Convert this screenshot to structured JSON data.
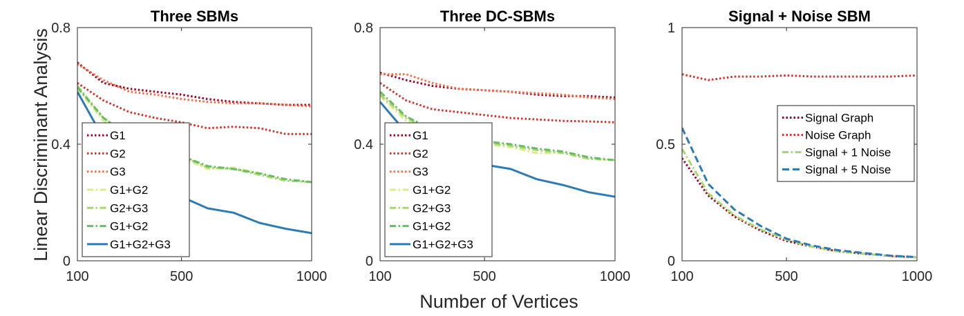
{
  "figure": {
    "ylabel": "Linear Discriminant Analysis",
    "xlabel": "Number of Vertices"
  },
  "colors": {
    "G1": "#a50026",
    "G2": "#d73027",
    "G3": "#f46d43",
    "G1+G2_light": "#d9ef8b",
    "G2+G3": "#a6d96a",
    "G1+G2_dark": "#66bd63",
    "G1+G2+G3": "#2c7bb6",
    "axis": "#262626"
  },
  "chart_data": [
    {
      "type": "line",
      "title": "Three SBMs",
      "xlabel": "Number of Vertices",
      "ylabel": "Linear Discriminant Analysis",
      "xlim": [
        100,
        1000
      ],
      "ylim": [
        0,
        0.8
      ],
      "xticks": [
        100,
        500,
        1000
      ],
      "yticks": [
        0,
        0.4,
        0.8
      ],
      "ytick_labels": [
        "0",
        "0.4",
        "0.8"
      ],
      "legend_position": "lower-left",
      "x": [
        100,
        200,
        300,
        400,
        500,
        600,
        700,
        800,
        900,
        1000
      ],
      "series": [
        {
          "name": "G1",
          "style": "dotted",
          "color_key": "G1",
          "values": [
            0.68,
            0.61,
            0.59,
            0.58,
            0.57,
            0.555,
            0.545,
            0.54,
            0.535,
            0.535
          ]
        },
        {
          "name": "G2",
          "style": "dotted",
          "color_key": "G2",
          "values": [
            0.61,
            0.55,
            0.51,
            0.49,
            0.475,
            0.455,
            0.46,
            0.455,
            0.435,
            0.435
          ]
        },
        {
          "name": "G3",
          "style": "dotted",
          "color_key": "G3",
          "values": [
            0.675,
            0.62,
            0.58,
            0.57,
            0.555,
            0.545,
            0.54,
            0.54,
            0.535,
            0.53
          ]
        },
        {
          "name": "G1+G2",
          "style": "dashdot",
          "color_key": "G1+G2_light",
          "values": [
            0.59,
            0.48,
            0.42,
            0.38,
            0.355,
            0.315,
            0.32,
            0.3,
            0.275,
            0.27
          ]
        },
        {
          "name": "G2+G3",
          "style": "dashdot",
          "color_key": "G2+G3",
          "values": [
            0.6,
            0.49,
            0.43,
            0.385,
            0.36,
            0.32,
            0.315,
            0.295,
            0.275,
            0.27
          ]
        },
        {
          "name": "G1+G2",
          "style": "dashdot",
          "color_key": "G1+G2_dark",
          "values": [
            0.595,
            0.49,
            0.43,
            0.39,
            0.36,
            0.325,
            0.315,
            0.3,
            0.28,
            0.27
          ]
        },
        {
          "name": "G1+G2+G3",
          "style": "solid",
          "color_key": "G1+G2+G3",
          "values": [
            0.58,
            0.42,
            0.32,
            0.26,
            0.22,
            0.18,
            0.165,
            0.13,
            0.11,
            0.095
          ]
        }
      ]
    },
    {
      "type": "line",
      "title": "Three DC-SBMs",
      "xlabel": "Number of Vertices",
      "ylabel": "Linear Discriminant Analysis",
      "xlim": [
        100,
        1000
      ],
      "ylim": [
        0,
        0.8
      ],
      "xticks": [
        100,
        500,
        1000
      ],
      "yticks": [
        0,
        0.4,
        0.8
      ],
      "ytick_labels": [
        "0",
        "0.4",
        "0.8"
      ],
      "legend_position": "lower-left",
      "x": [
        100,
        200,
        300,
        400,
        500,
        600,
        700,
        800,
        900,
        1000
      ],
      "series": [
        {
          "name": "G1",
          "style": "dotted",
          "color_key": "G1",
          "values": [
            0.645,
            0.62,
            0.6,
            0.59,
            0.585,
            0.58,
            0.57,
            0.565,
            0.565,
            0.56
          ]
        },
        {
          "name": "G2",
          "style": "dotted",
          "color_key": "G2",
          "values": [
            0.61,
            0.55,
            0.52,
            0.51,
            0.5,
            0.49,
            0.485,
            0.48,
            0.478,
            0.475
          ]
        },
        {
          "name": "G3",
          "style": "dotted",
          "color_key": "G3",
          "values": [
            0.64,
            0.64,
            0.61,
            0.59,
            0.585,
            0.58,
            0.575,
            0.57,
            0.56,
            0.555
          ]
        },
        {
          "name": "G1+G2",
          "style": "dashdot",
          "color_key": "G1+G2_light",
          "values": [
            0.565,
            0.48,
            0.44,
            0.415,
            0.4,
            0.39,
            0.37,
            0.37,
            0.35,
            0.345
          ]
        },
        {
          "name": "G2+G3",
          "style": "dashdot",
          "color_key": "G2+G3",
          "values": [
            0.57,
            0.49,
            0.445,
            0.42,
            0.405,
            0.395,
            0.38,
            0.37,
            0.35,
            0.345
          ]
        },
        {
          "name": "G1+G2",
          "style": "dashdot",
          "color_key": "G1+G2_dark",
          "values": [
            0.58,
            0.495,
            0.45,
            0.425,
            0.41,
            0.4,
            0.385,
            0.375,
            0.355,
            0.345
          ]
        },
        {
          "name": "G1+G2+G3",
          "style": "solid",
          "color_key": "G1+G2+G3",
          "values": [
            0.545,
            0.44,
            0.375,
            0.345,
            0.33,
            0.315,
            0.28,
            0.26,
            0.235,
            0.22
          ]
        }
      ]
    },
    {
      "type": "line",
      "title": "Signal + Noise SBM",
      "xlabel": "Number of Vertices",
      "ylabel": "Linear Discriminant Analysis",
      "xlim": [
        100,
        1000
      ],
      "ylim": [
        0,
        1
      ],
      "xticks": [
        100,
        500,
        1000
      ],
      "yticks": [
        0,
        0.5,
        1
      ],
      "ytick_labels": [
        "0",
        "0.5",
        "1"
      ],
      "legend_position": "center-right",
      "x": [
        100,
        200,
        300,
        400,
        500,
        600,
        700,
        800,
        900,
        1000
      ],
      "series": [
        {
          "name": "Signal Graph",
          "style": "dotted",
          "color_key": "G1",
          "values": [
            0.44,
            0.28,
            0.19,
            0.13,
            0.085,
            0.06,
            0.04,
            0.03,
            0.02,
            0.015
          ]
        },
        {
          "name": "Noise Graph",
          "style": "dotted",
          "color_key": "G2",
          "values": [
            0.8,
            0.775,
            0.79,
            0.79,
            0.795,
            0.79,
            0.79,
            0.79,
            0.79,
            0.795
          ]
        },
        {
          "name": "Signal + 1 Noise",
          "style": "dashdot",
          "color_key": "G2+G3",
          "values": [
            0.48,
            0.29,
            0.195,
            0.135,
            0.09,
            0.06,
            0.04,
            0.03,
            0.02,
            0.015
          ]
        },
        {
          "name": "Signal + 5 Noise",
          "style": "dashed",
          "color_key": "G1+G2+G3",
          "values": [
            0.57,
            0.33,
            0.22,
            0.15,
            0.095,
            0.065,
            0.045,
            0.033,
            0.022,
            0.016
          ]
        }
      ]
    }
  ]
}
